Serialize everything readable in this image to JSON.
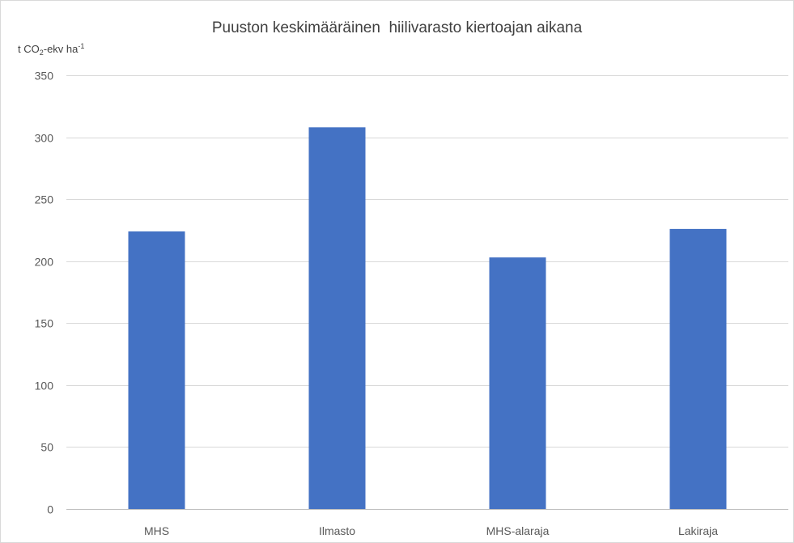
{
  "chart_data": {
    "type": "bar",
    "title": "Puuston keskimääräinen  hiilivarasto kiertoajan aikana",
    "ylabel": {
      "pre": "t CO",
      "sub": "2",
      "mid": "-ekv ha",
      "sup": "-1"
    },
    "categories": [
      "MHS",
      "Ilmasto",
      "MHS-alaraja",
      "Lakiraja"
    ],
    "values": [
      224,
      308,
      203,
      226
    ],
    "ylim": [
      0,
      350
    ],
    "yticks": [
      0,
      50,
      100,
      150,
      200,
      250,
      300,
      350
    ],
    "grid": true,
    "colors": {
      "bar": "#4472C4",
      "grid": "#d9d9d9",
      "axis": "#bfbfbf"
    }
  }
}
